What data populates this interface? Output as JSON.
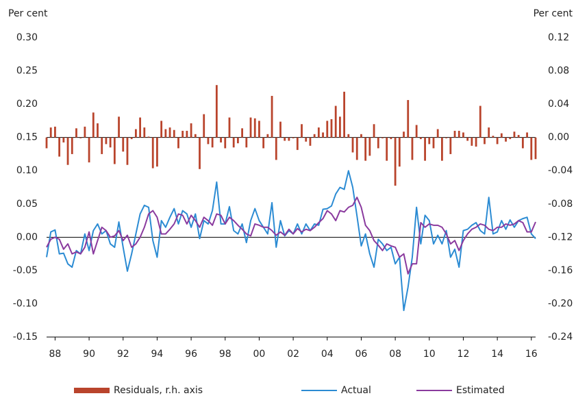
{
  "chart_data": {
    "type": "line",
    "y_label": "Per cent",
    "y2_label": "Per cent",
    "categories": [
      null,
      null,
      "88",
      null,
      null,
      null,
      null,
      null,
      null,
      null,
      "90",
      null,
      null,
      null,
      null,
      null,
      null,
      null,
      "92",
      null,
      null,
      null,
      null,
      null,
      null,
      null,
      "94",
      null,
      null,
      null,
      null,
      null,
      null,
      null,
      "96",
      null,
      null,
      null,
      null,
      null,
      null,
      null,
      "98",
      null,
      null,
      null,
      null,
      null,
      null,
      null,
      "00",
      null,
      null,
      null,
      null,
      null,
      null,
      null,
      "02",
      null,
      null,
      null,
      null,
      null,
      null,
      null,
      "04",
      null,
      null,
      null,
      null,
      null,
      null,
      null,
      "06",
      null,
      null,
      null,
      null,
      null,
      null,
      null,
      "08",
      null,
      null,
      null,
      null,
      null,
      null,
      null,
      "10",
      null,
      null,
      null,
      null,
      null,
      null,
      null,
      "12",
      null,
      null,
      null,
      null,
      null,
      null,
      null,
      "14",
      null,
      null,
      null,
      null,
      null,
      null,
      null,
      "16",
      null
    ],
    "ylim": [
      -0.15,
      0.3
    ],
    "yticks": [
      {
        "value": -0.15,
        "label": "-0.15"
      },
      {
        "value": -0.1,
        "label": "-0.10"
      },
      {
        "value": -0.05,
        "label": "-0.05"
      },
      {
        "value": 0,
        "label": "0.00"
      },
      {
        "value": 0.05,
        "label": "0.05"
      },
      {
        "value": 0.1,
        "label": "0.10"
      },
      {
        "value": 0.15,
        "label": "0.15"
      },
      {
        "value": 0.2,
        "label": "0.20"
      },
      {
        "value": 0.25,
        "label": "0.25"
      },
      {
        "value": 0.3,
        "label": "0.30"
      }
    ],
    "y2lim": [
      -0.24,
      0.12
    ],
    "y2ticks": [
      {
        "value": -0.24,
        "label": "-0.24"
      },
      {
        "value": -0.2,
        "label": "-0.20"
      },
      {
        "value": -0.16,
        "label": "-0.16"
      },
      {
        "value": -0.12,
        "label": "-0.12"
      },
      {
        "value": -0.08,
        "label": "-0.08"
      },
      {
        "value": -0.04,
        "label": "-0.04"
      },
      {
        "value": 0,
        "label": "0.00"
      },
      {
        "value": 0.04,
        "label": "0.04"
      },
      {
        "value": 0.08,
        "label": "0.08"
      },
      {
        "value": 0.12,
        "label": "0.12"
      }
    ],
    "grid": false,
    "legend": "bottom",
    "series": [
      {
        "name": "Residuals, r.h. axis",
        "type": "bar",
        "axis": "y2",
        "color": "#b9442c",
        "values": [
          -0.013,
          0.012,
          0.013,
          -0.023,
          -0.006,
          -0.033,
          -0.02,
          0.011,
          -0.001,
          0.013,
          -0.03,
          0.03,
          0.017,
          -0.02,
          -0.008,
          -0.012,
          -0.032,
          0.025,
          -0.017,
          -0.033,
          -0.002,
          0.01,
          0.024,
          0.012,
          0.001,
          -0.037,
          -0.035,
          0.02,
          0.01,
          0.012,
          0.009,
          -0.013,
          0.008,
          0.008,
          0.017,
          0.004,
          -0.038,
          0.028,
          -0.008,
          -0.012,
          0.063,
          -0.006,
          -0.013,
          0.024,
          -0.012,
          -0.007,
          0.011,
          -0.012,
          0.024,
          0.023,
          0.02,
          -0.013,
          0.004,
          0.05,
          -0.027,
          0.019,
          -0.004,
          -0.004,
          -0.001,
          -0.015,
          0.016,
          -0.005,
          -0.01,
          0.004,
          0.012,
          0.006,
          0.02,
          0.022,
          0.038,
          0.025,
          0.055,
          0.004,
          -0.018,
          -0.027,
          0.004,
          -0.028,
          -0.022,
          0.016,
          -0.013,
          -0.001,
          -0.028,
          -0.002,
          -0.058,
          -0.035,
          0.007,
          0.045,
          -0.027,
          0.015,
          -0.002,
          -0.028,
          -0.008,
          -0.013,
          0.01,
          -0.028,
          -0.001,
          -0.02,
          0.008,
          0.008,
          0.006,
          -0.004,
          -0.01,
          -0.011,
          0.038,
          -0.008,
          0.012,
          0.002,
          -0.008,
          0.005,
          -0.005,
          -0.002,
          0.007,
          0.003,
          -0.013,
          0.006,
          -0.027,
          -0.026
        ]
      },
      {
        "name": "Actual",
        "type": "line",
        "color": "#2b8bd3",
        "values": [
          -0.03,
          0.008,
          0.011,
          -0.025,
          -0.024,
          -0.04,
          -0.045,
          -0.02,
          -0.025,
          0.005,
          -0.02,
          0.01,
          0.02,
          0.005,
          0.01,
          -0.01,
          -0.015,
          0.023,
          -0.015,
          -0.051,
          -0.025,
          0.005,
          0.035,
          0.048,
          0.045,
          -0.005,
          -0.03,
          0.025,
          0.015,
          0.03,
          0.043,
          0.02,
          0.04,
          0.035,
          0.015,
          0.035,
          -0.002,
          0.025,
          0.02,
          0.04,
          0.083,
          0.02,
          0.02,
          0.046,
          0.01,
          0.005,
          0.02,
          -0.008,
          0.025,
          0.043,
          0.025,
          0.015,
          0.005,
          0.052,
          -0.015,
          0.025,
          0.002,
          0.01,
          0.005,
          0.02,
          0.005,
          0.02,
          0.01,
          0.02,
          0.018,
          0.042,
          0.043,
          0.047,
          0.065,
          0.075,
          0.072,
          0.1,
          0.075,
          0.032,
          -0.013,
          0.005,
          -0.025,
          -0.045,
          -0.003,
          -0.01,
          -0.02,
          -0.015,
          -0.04,
          -0.03,
          -0.11,
          -0.075,
          -0.03,
          0.045,
          -0.01,
          0.033,
          0.025,
          -0.01,
          0.003,
          -0.01,
          0.01,
          -0.03,
          -0.018,
          -0.045,
          0.01,
          0.012,
          0.018,
          0.022,
          0.01,
          0.005,
          0.06,
          0.005,
          0.008,
          0.025,
          0.012,
          0.026,
          0.015,
          0.025,
          0.028,
          0.03,
          0.005,
          -0.002
        ]
      },
      {
        "name": "Estimated",
        "type": "line",
        "color": "#8a3a9e",
        "values": [
          -0.015,
          -0.003,
          0.0,
          -0.003,
          -0.018,
          -0.01,
          -0.025,
          -0.022,
          -0.025,
          -0.015,
          0.008,
          -0.025,
          -0.005,
          0.015,
          0.01,
          0.0,
          0.002,
          0.01,
          -0.005,
          0.003,
          -0.015,
          -0.01,
          0.0,
          0.015,
          0.035,
          0.04,
          0.03,
          0.005,
          0.005,
          0.012,
          0.02,
          0.035,
          0.033,
          0.02,
          0.033,
          0.025,
          0.015,
          0.03,
          0.025,
          0.018,
          0.035,
          0.033,
          0.02,
          0.03,
          0.025,
          0.018,
          0.012,
          0.005,
          0.002,
          0.02,
          0.018,
          0.015,
          0.015,
          0.01,
          0.003,
          0.008,
          0.003,
          0.012,
          0.005,
          0.013,
          0.008,
          0.012,
          0.01,
          0.015,
          0.022,
          0.028,
          0.04,
          0.035,
          0.025,
          0.04,
          0.038,
          0.045,
          0.048,
          0.06,
          0.045,
          0.018,
          0.01,
          -0.005,
          -0.012,
          -0.02,
          -0.01,
          -0.013,
          -0.015,
          -0.03,
          -0.025,
          -0.055,
          -0.04,
          -0.04,
          0.022,
          0.015,
          0.02,
          0.018,
          0.018,
          0.015,
          0.005,
          -0.01,
          -0.005,
          -0.02,
          -0.005,
          0.005,
          0.012,
          0.015,
          0.02,
          0.018,
          0.012,
          0.01,
          0.015,
          0.015,
          0.02,
          0.018,
          0.02,
          0.025,
          0.022,
          0.008,
          0.008,
          0.023
        ]
      }
    ]
  }
}
